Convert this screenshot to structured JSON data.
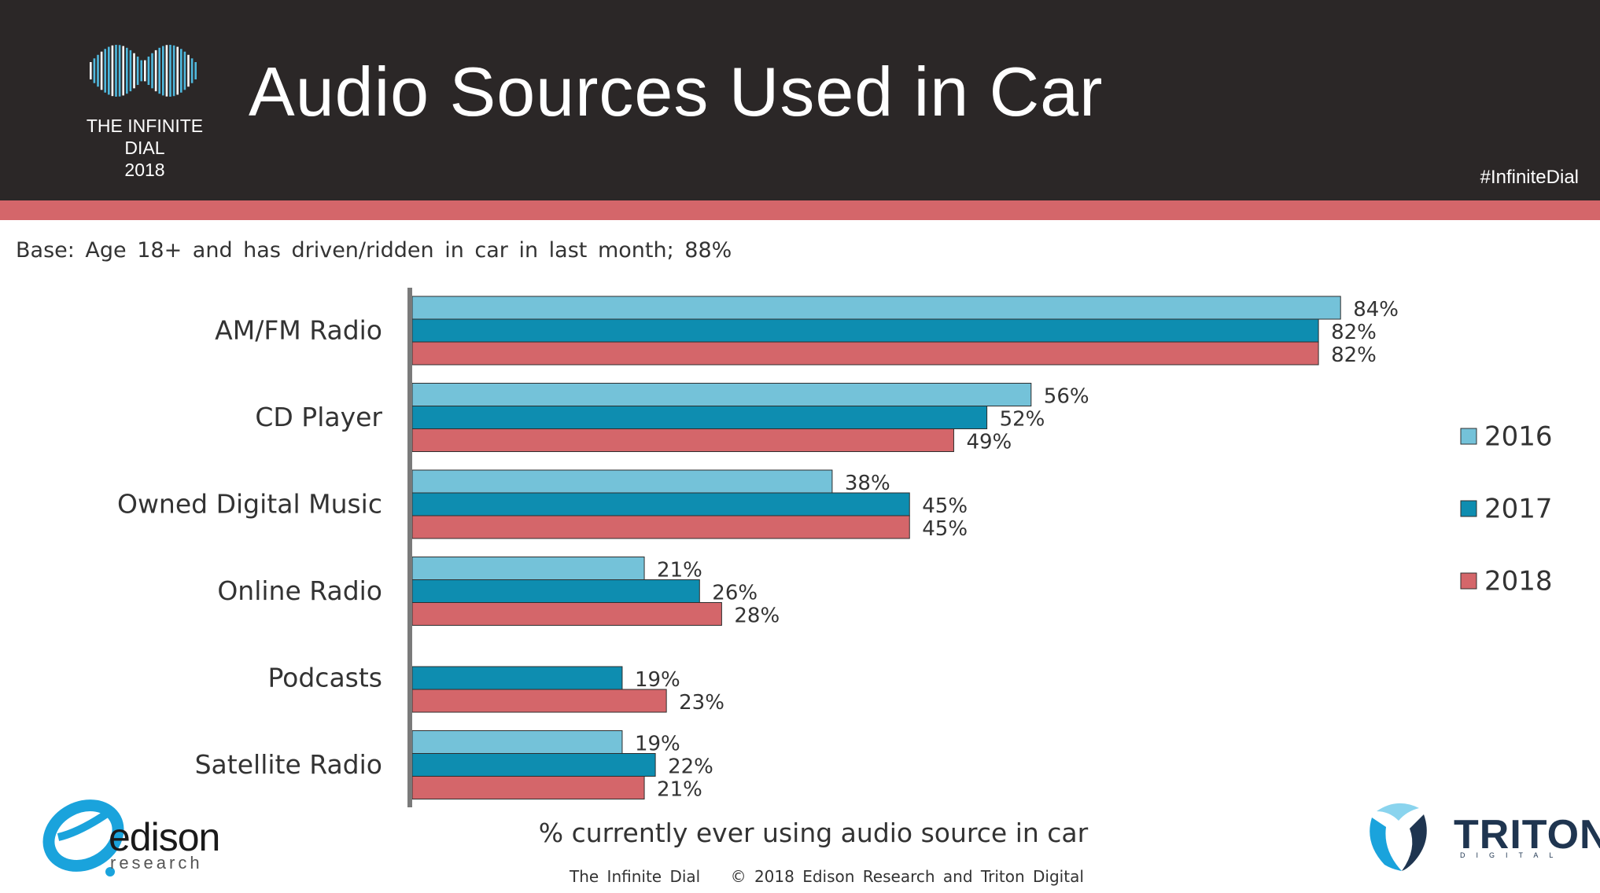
{
  "header": {
    "logo_line1": "THE INFINITE DIAL",
    "logo_line2": "2018",
    "title": "Audio Sources Used in Car",
    "hashtag": "#InfiniteDial"
  },
  "base_note": "Base: Age 18+ and has driven/ridden in car in last month; 88%",
  "chart_data": {
    "type": "bar",
    "orientation": "horizontal",
    "categories": [
      "AM/FM Radio",
      "CD Player",
      "Owned Digital Music",
      "Online Radio",
      "Podcasts",
      "Satellite Radio"
    ],
    "series": [
      {
        "name": "2016",
        "color": "#74c2d9",
        "values": [
          84,
          56,
          38,
          21,
          null,
          19
        ],
        "labels": [
          "84%",
          "56%",
          "38%",
          "21%",
          "",
          "19%"
        ]
      },
      {
        "name": "2017",
        "color": "#0e8db0",
        "values": [
          82,
          52,
          45,
          26,
          19,
          22
        ],
        "labels": [
          "82%",
          "52%",
          "45%",
          "26%",
          "19%",
          "22%"
        ]
      },
      {
        "name": "2018",
        "color": "#d4666a",
        "values": [
          82,
          49,
          45,
          28,
          23,
          21
        ],
        "labels": [
          "82%",
          "49%",
          "45%",
          "28%",
          "23%",
          "21%"
        ]
      }
    ],
    "xlabel": "% currently ever using audio source in car",
    "xlim": [
      0,
      100
    ],
    "grid": false,
    "legend_position": "right"
  },
  "footer": {
    "left": "The Infinite Dial",
    "right": "© 2018 Edison Research and Triton Digital"
  },
  "logos": {
    "edison_name": "edison",
    "edison_sub": "research",
    "triton_name": "TRITON",
    "triton_sub": "DIGITAL"
  },
  "colors": {
    "header_bg": "#2b2727",
    "accent": "#d4666a"
  }
}
